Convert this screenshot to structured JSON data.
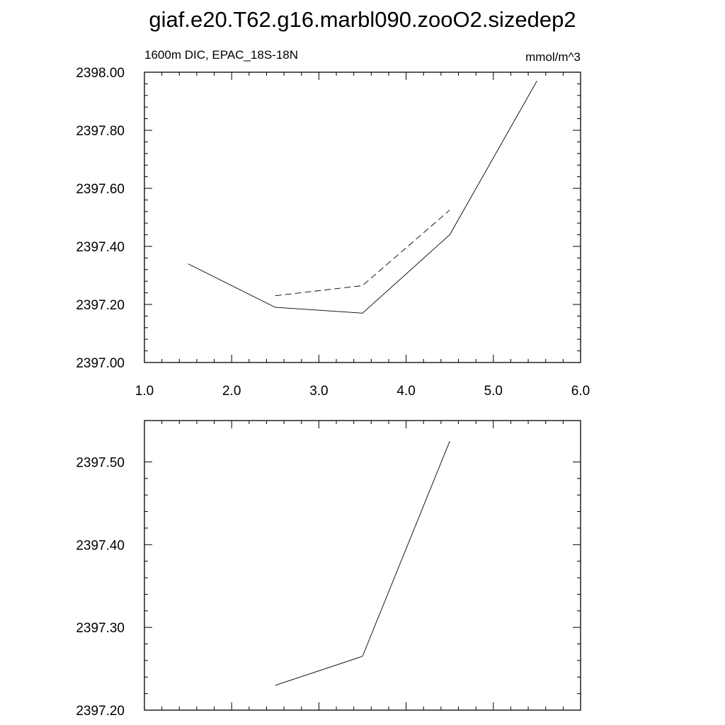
{
  "figure": {
    "title": "giaf.e20.T62.g16.marbl090.zooO2.sizedep2",
    "left_string": "1600m DIC, EPAC_18S-18N",
    "right_string": "mmol/m^3"
  },
  "chart_data": [
    {
      "type": "line",
      "title": "giaf.e20.T62.g16.marbl090.zooO2.sizedep2",
      "subtitle_left": "1600m DIC, EPAC_18S-18N",
      "subtitle_right": "mmol/m^3",
      "xlim": [
        1.0,
        6.0
      ],
      "ylim": [
        2397.0,
        2398.0
      ],
      "x_ticks": [
        1.0,
        2.0,
        3.0,
        4.0,
        5.0,
        6.0
      ],
      "x_tick_labels": [
        "1.0",
        "2.0",
        "3.0",
        "4.0",
        "5.0",
        "6.0"
      ],
      "y_ticks": [
        2397.0,
        2397.2,
        2397.4,
        2397.6,
        2397.8,
        2398.0
      ],
      "y_tick_labels": [
        "2397.00",
        "2397.20",
        "2397.40",
        "2397.60",
        "2397.80",
        "2398.00"
      ],
      "grid": false,
      "series": [
        {
          "style": "solid",
          "color": "#000000",
          "x": [
            1.5,
            2.5,
            3.5,
            4.5,
            5.5
          ],
          "y": [
            2397.34,
            2397.19,
            2397.17,
            2397.44,
            2397.97
          ]
        },
        {
          "style": "dashed",
          "color": "#000000",
          "x": [
            2.5,
            3.5,
            4.5
          ],
          "y": [
            2397.23,
            2397.265,
            2397.525
          ]
        }
      ]
    },
    {
      "type": "line",
      "xlim": [
        1.0,
        6.0
      ],
      "ylim": [
        2397.2,
        2397.55
      ],
      "x_ticks": [
        1.0,
        2.0,
        3.0,
        4.0,
        5.0,
        6.0
      ],
      "y_ticks": [
        2397.2,
        2397.3,
        2397.4,
        2397.5
      ],
      "y_tick_labels": [
        "2397.20",
        "2397.30",
        "2397.40",
        "2397.50"
      ],
      "grid": false,
      "series": [
        {
          "style": "solid",
          "color": "#000000",
          "x": [
            2.5,
            3.5,
            4.5
          ],
          "y": [
            2397.23,
            2397.265,
            2397.525
          ]
        }
      ]
    }
  ]
}
